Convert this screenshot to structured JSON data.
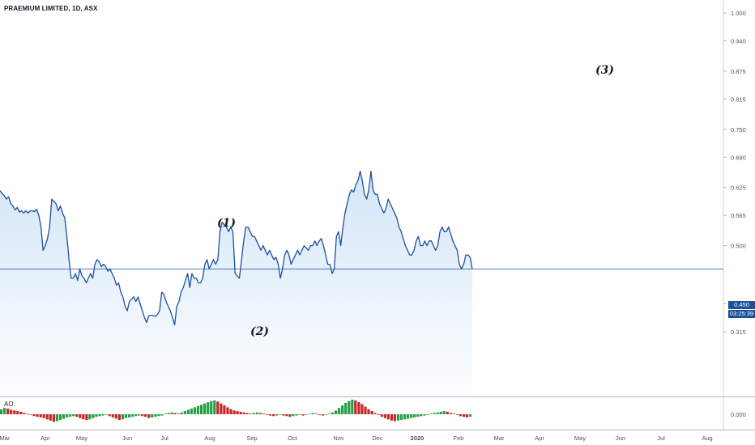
{
  "header": {
    "symbol_title": "PRAEMIUM LIMITED, 1D, ASX"
  },
  "indicator": {
    "name": "AO",
    "axis_label": "0.000"
  },
  "price_scale": {
    "ticks": [
      "1.000",
      "0.940",
      "0.875",
      "0.815",
      "0.750",
      "0.690",
      "0.625",
      "0.565",
      "0.500",
      "0.375",
      "0.315"
    ],
    "last_price": "0.450",
    "countdown": "03:25:39"
  },
  "time_axis": {
    "labels": [
      "Mar",
      "Apr",
      "May",
      "Jun",
      "Jul",
      "Aug",
      "Sep",
      "Oct",
      "Nov",
      "Dec",
      "2020",
      "Feb",
      "Mar",
      "Apr",
      "May",
      "Jun",
      "Jul",
      "Aug"
    ]
  },
  "annotations": {
    "wave1": "(1)",
    "wave2": "(2)",
    "wave3": "(3)"
  },
  "colors": {
    "line": "#1e4f9c",
    "area_top": "#cfe3f7",
    "ao_up": "#26a046",
    "ao_down": "#c62828",
    "price_tag": "#1e4f9c"
  },
  "chart_data": {
    "type": "area",
    "ylim": [
      0.29,
      1.02
    ],
    "y_ticks": [
      1.0,
      0.94,
      0.875,
      0.815,
      0.75,
      0.69,
      0.625,
      0.565,
      0.5,
      0.375,
      0.315
    ],
    "last_value": 0.45,
    "series": [
      {
        "values": [
          0.618,
          0.612,
          0.607,
          0.6,
          0.605,
          0.59,
          0.585,
          0.577,
          0.582,
          0.572,
          0.575,
          0.57,
          0.575,
          0.57,
          0.575,
          0.575,
          0.573,
          0.578,
          0.565,
          0.54,
          0.49,
          0.5,
          0.515,
          0.54,
          0.6,
          0.595,
          0.59,
          0.575,
          0.585,
          0.57,
          0.56,
          0.52,
          0.47,
          0.43,
          0.43,
          0.44,
          0.425,
          0.45,
          0.435,
          0.43,
          0.42,
          0.43,
          0.44,
          0.43,
          0.46,
          0.47,
          0.465,
          0.455,
          0.46,
          0.455,
          0.445,
          0.45,
          0.44,
          0.43,
          0.415,
          0.42,
          0.4,
          0.39,
          0.37,
          0.36,
          0.38,
          0.385,
          0.39,
          0.38,
          0.39,
          0.375,
          0.36,
          0.345,
          0.335,
          0.35,
          0.35,
          0.35,
          0.348,
          0.352,
          0.36,
          0.4,
          0.395,
          0.38,
          0.37,
          0.36,
          0.345,
          0.33,
          0.37,
          0.38,
          0.4,
          0.41,
          0.425,
          0.44,
          0.41,
          0.44,
          0.43,
          0.43,
          0.42,
          0.42,
          0.43,
          0.46,
          0.47,
          0.45,
          0.46,
          0.47,
          0.46,
          0.47,
          0.53,
          0.55,
          0.545,
          0.54,
          0.53,
          0.54,
          0.53,
          0.44,
          0.435,
          0.43,
          0.47,
          0.51,
          0.54,
          0.54,
          0.53,
          0.52,
          0.52,
          0.51,
          0.5,
          0.49,
          0.5,
          0.49,
          0.48,
          0.49,
          0.48,
          0.47,
          0.475,
          0.46,
          0.43,
          0.45,
          0.48,
          0.49,
          0.48,
          0.46,
          0.47,
          0.48,
          0.49,
          0.48,
          0.49,
          0.5,
          0.495,
          0.49,
          0.5,
          0.5,
          0.51,
          0.5,
          0.51,
          0.515,
          0.5,
          0.48,
          0.46,
          0.46,
          0.44,
          0.45,
          0.52,
          0.53,
          0.5,
          0.54,
          0.57,
          0.59,
          0.61,
          0.62,
          0.615,
          0.63,
          0.64,
          0.66,
          0.64,
          0.61,
          0.6,
          0.62,
          0.66,
          0.62,
          0.61,
          0.61,
          0.59,
          0.58,
          0.57,
          0.58,
          0.6,
          0.59,
          0.58,
          0.57,
          0.56,
          0.54,
          0.53,
          0.515,
          0.5,
          0.49,
          0.48,
          0.48,
          0.49,
          0.51,
          0.52,
          0.5,
          0.5,
          0.51,
          0.5,
          0.51,
          0.51,
          0.5,
          0.49,
          0.5,
          0.53,
          0.54,
          0.53,
          0.53,
          0.54,
          0.525,
          0.51,
          0.5,
          0.49,
          0.46,
          0.45,
          0.46,
          0.48,
          0.48,
          0.475,
          0.45
        ]
      }
    ],
    "ao_values": [
      0.008,
      0.01,
      0.009,
      0.007,
      0.006,
      0.005,
      0.004,
      0.002,
      0.001,
      -0.001,
      -0.003,
      -0.004,
      -0.005,
      -0.006,
      -0.008,
      -0.01,
      -0.012,
      -0.011,
      -0.009,
      -0.007,
      -0.005,
      -0.004,
      -0.003,
      -0.004,
      -0.006,
      -0.008,
      -0.009,
      -0.008,
      -0.006,
      -0.004,
      -0.003,
      -0.002,
      -0.001,
      -0.003,
      -0.005,
      -0.007,
      -0.009,
      -0.008,
      -0.006,
      -0.005,
      -0.004,
      -0.003,
      -0.002,
      -0.003,
      -0.004,
      -0.006,
      -0.005,
      -0.004,
      -0.003,
      -0.002,
      0.001,
      0.002,
      0.003,
      0.002,
      0.001,
      0.003,
      0.005,
      0.007,
      0.009,
      0.011,
      0.013,
      0.015,
      0.017,
      0.019,
      0.021,
      0.022,
      0.02,
      0.017,
      0.014,
      0.011,
      0.008,
      0.006,
      0.005,
      0.004,
      0.003,
      0.002,
      0.001,
      0.002,
      0.003,
      0.002,
      0.001,
      -0.001,
      -0.002,
      -0.003,
      -0.002,
      -0.001,
      -0.002,
      -0.003,
      -0.004,
      -0.003,
      -0.002,
      -0.001,
      -0.002,
      -0.001,
      0.001,
      0.002,
      0.001,
      -0.001,
      -0.002,
      -0.001,
      0.001,
      0.003,
      0.006,
      0.01,
      0.014,
      0.018,
      0.021,
      0.023,
      0.022,
      0.019,
      0.016,
      0.012,
      0.008,
      0.005,
      0.002,
      -0.001,
      -0.004,
      -0.006,
      -0.008,
      -0.01,
      -0.011,
      -0.01,
      -0.009,
      -0.008,
      -0.007,
      -0.006,
      -0.005,
      -0.004,
      -0.003,
      -0.002,
      -0.001,
      0.001,
      0.002,
      0.003,
      0.004,
      0.005,
      0.004,
      0.002,
      0.001,
      -0.001,
      -0.003,
      -0.004,
      -0.005,
      -0.004
    ]
  }
}
